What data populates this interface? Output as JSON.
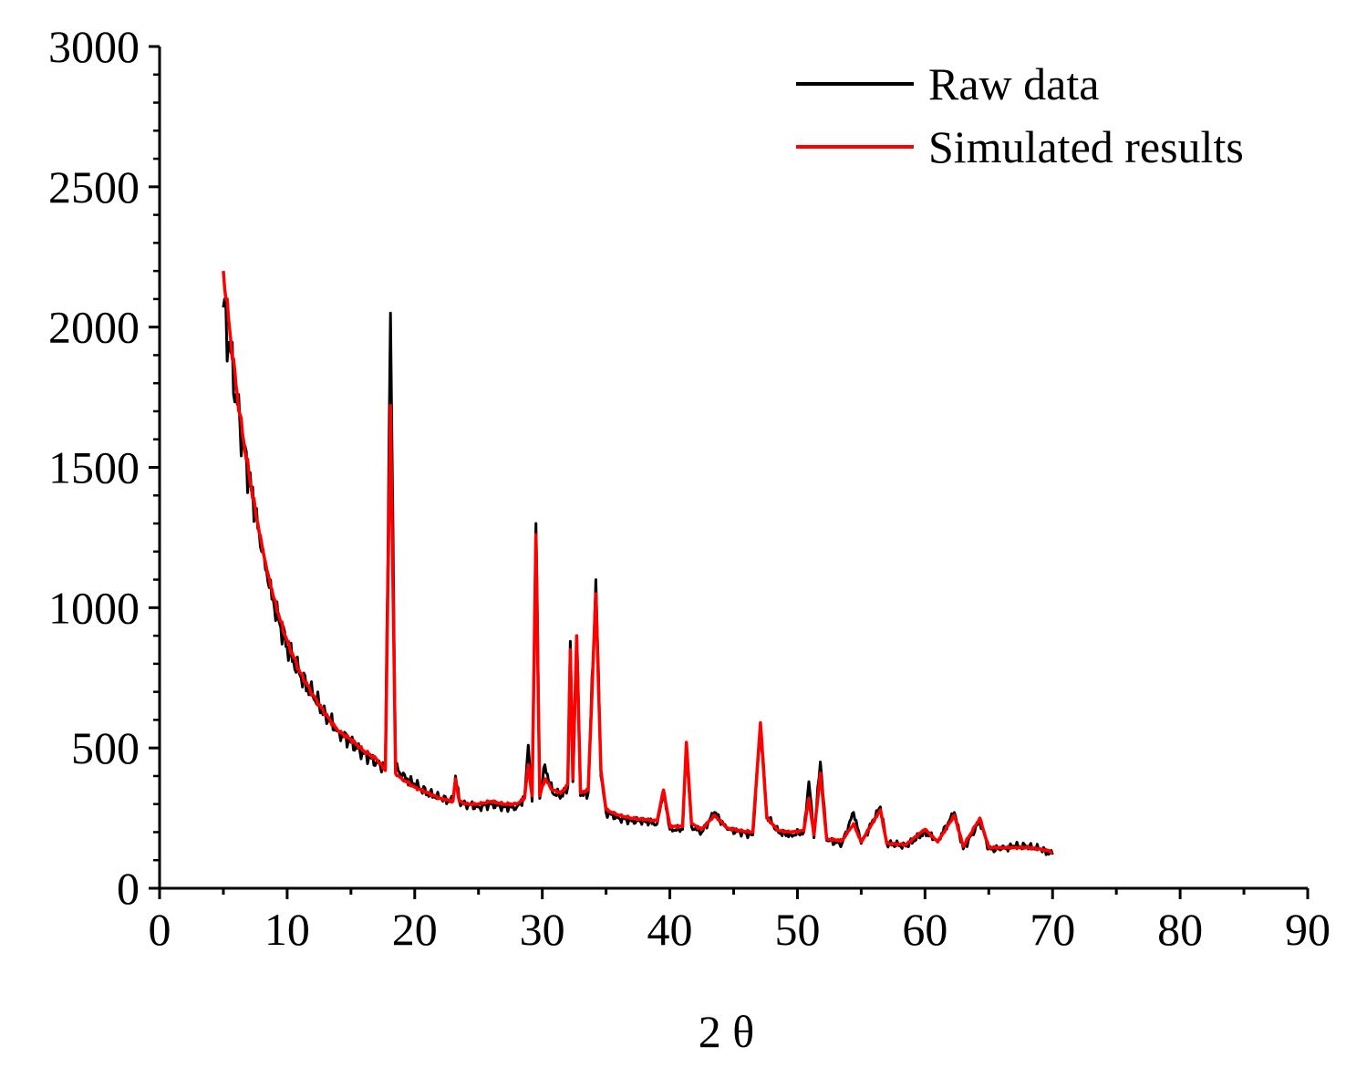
{
  "chart_data": {
    "type": "line",
    "title": "",
    "xlabel": "2 θ",
    "ylabel": "",
    "xlim": [
      0,
      90
    ],
    "ylim": [
      0,
      3000
    ],
    "x_ticks": [
      0,
      10,
      20,
      30,
      40,
      50,
      60,
      70,
      80,
      90
    ],
    "x_tick_labels": [
      "0",
      "10",
      "20",
      "30",
      "40",
      "50",
      "60",
      "70",
      "80",
      "90"
    ],
    "y_ticks": [
      0,
      500,
      1000,
      1500,
      2000,
      2500,
      3000
    ],
    "y_tick_labels": [
      "0",
      "500",
      "1000",
      "1500",
      "2000",
      "2500",
      "3000"
    ],
    "legend_position": "top-right",
    "series": [
      {
        "name": "Raw data",
        "color": "#000000",
        "x": [
          5,
          5.5,
          6,
          6.5,
          7,
          7.5,
          8,
          8.5,
          9,
          9.5,
          10,
          11,
          12,
          13,
          14,
          15,
          16,
          17,
          17.7,
          18.1,
          18.5,
          19,
          20,
          21,
          22,
          23,
          23.2,
          23.5,
          24,
          25,
          26,
          27,
          28,
          28.6,
          28.9,
          29.2,
          29.5,
          29.8,
          30.2,
          30.8,
          31.5,
          32.0,
          32.2,
          32.4,
          32.7,
          33.0,
          33.6,
          34.2,
          34.6,
          35,
          36,
          37,
          38,
          39,
          39.5,
          40,
          41,
          41.3,
          41.7,
          42.5,
          43.5,
          44.5,
          45.5,
          46.5,
          47.1,
          47.6,
          48.5,
          49.5,
          50.5,
          50.9,
          51.3,
          51.8,
          52.3,
          53.5,
          54.4,
          55,
          56.5,
          57,
          58.5,
          60,
          61,
          62.3,
          63,
          64.3,
          65,
          66,
          67,
          68,
          69,
          70
        ],
        "values": [
          2070,
          1930,
          1760,
          1600,
          1470,
          1330,
          1200,
          1090,
          1000,
          930,
          860,
          760,
          690,
          620,
          560,
          520,
          480,
          450,
          430,
          2050,
          430,
          400,
          370,
          340,
          320,
          310,
          400,
          310,
          300,
          290,
          300,
          290,
          290,
          320,
          510,
          310,
          1300,
          320,
          440,
          340,
          330,
          360,
          880,
          380,
          900,
          330,
          340,
          1100,
          400,
          270,
          250,
          240,
          240,
          230,
          350,
          210,
          210,
          500,
          220,
          200,
          270,
          210,
          200,
          190,
          580,
          260,
          200,
          190,
          200,
          380,
          180,
          450,
          170,
          160,
          270,
          160,
          290,
          160,
          150,
          200,
          170,
          270,
          140,
          240,
          140,
          140,
          150,
          150,
          140,
          120
        ]
      },
      {
        "name": "Simulated results",
        "color": "#ff0000",
        "x": [
          5,
          5.5,
          6,
          6.5,
          7,
          7.5,
          8,
          8.5,
          9,
          9.5,
          10,
          11,
          12,
          13,
          14,
          15,
          16,
          17,
          17.7,
          18.1,
          18.5,
          19,
          20,
          21,
          22,
          23,
          23.2,
          23.5,
          24,
          25,
          26,
          27,
          28,
          28.6,
          28.9,
          29.2,
          29.5,
          29.8,
          30.2,
          30.8,
          31.5,
          32.0,
          32.2,
          32.4,
          32.7,
          33.0,
          33.6,
          34.2,
          34.6,
          35,
          36,
          37,
          38,
          39,
          39.5,
          40,
          41,
          41.3,
          41.7,
          42.5,
          43.5,
          44.5,
          45.5,
          46.5,
          47.1,
          47.6,
          48.5,
          49.5,
          50.5,
          50.9,
          51.3,
          51.8,
          52.3,
          53.5,
          54.4,
          55,
          56.5,
          57,
          58.5,
          60,
          61,
          62.3,
          63,
          64.3,
          65,
          66,
          67,
          68,
          69,
          70
        ],
        "values": [
          2200,
          1990,
          1790,
          1620,
          1480,
          1350,
          1230,
          1120,
          1030,
          950,
          880,
          770,
          690,
          620,
          560,
          530,
          490,
          460,
          420,
          1720,
          410,
          390,
          360,
          340,
          320,
          310,
          390,
          310,
          300,
          300,
          310,
          300,
          300,
          320,
          440,
          330,
          1260,
          330,
          390,
          350,
          340,
          370,
          850,
          390,
          900,
          340,
          350,
          1050,
          420,
          280,
          260,
          250,
          245,
          240,
          350,
          220,
          220,
          520,
          230,
          210,
          260,
          215,
          205,
          200,
          590,
          250,
          205,
          200,
          205,
          320,
          190,
          410,
          175,
          170,
          230,
          165,
          280,
          160,
          155,
          210,
          165,
          260,
          150,
          250,
          145,
          145,
          145,
          145,
          140,
          130
        ]
      }
    ]
  }
}
